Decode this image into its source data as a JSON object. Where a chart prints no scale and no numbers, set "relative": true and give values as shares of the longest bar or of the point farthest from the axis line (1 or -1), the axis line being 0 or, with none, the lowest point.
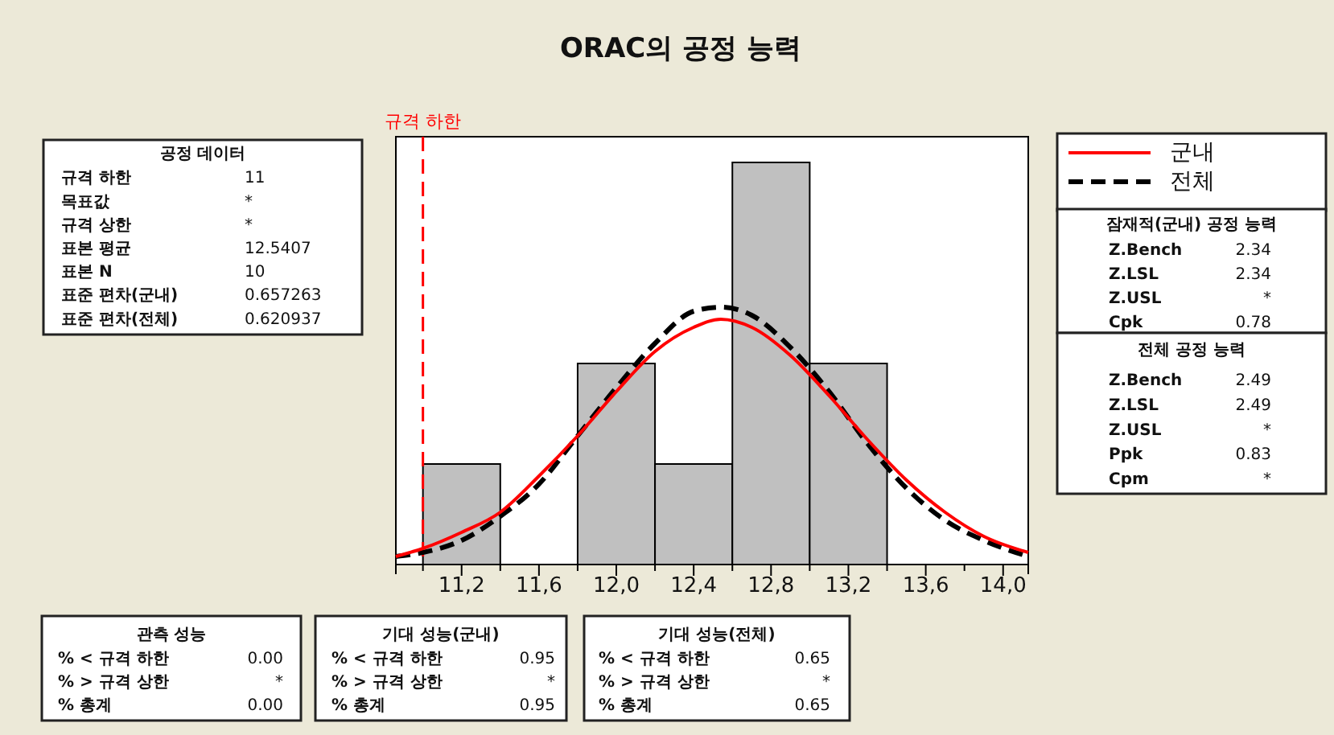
{
  "chart_data": [
    {
      "type": "histogram",
      "title": "ORAC의 공정 능력",
      "relative": true,
      "bins": [
        11.0,
        11.4,
        11.8,
        12.2,
        12.6,
        13.0,
        13.4
      ],
      "values": [
        0.25,
        0,
        0.5,
        0.25,
        1,
        0.5
      ],
      "color": "#c0c0c0",
      "xlim": [
        10.86,
        14.13
      ],
      "xticks": [
        {
          "value": 11.0,
          "label": null
        },
        {
          "value": 11.2,
          "label": "11,2"
        },
        {
          "value": 11.4,
          "label": null
        },
        {
          "value": 11.6,
          "label": "11,6"
        },
        {
          "value": 11.8,
          "label": null
        },
        {
          "value": 12,
          "label": "12,0"
        },
        {
          "value": 12.2,
          "label": null
        },
        {
          "value": 12.4,
          "label": "12,4"
        },
        {
          "value": 12.6,
          "label": null
        },
        {
          "value": 12.8,
          "label": "12,8"
        },
        {
          "value": 13.0,
          "label": null
        },
        {
          "value": 13.2,
          "label": "13,2"
        },
        {
          "value": 13.4,
          "label": null
        },
        {
          "value": 13.6,
          "label": "13,6"
        },
        {
          "value": 13.8,
          "label": null
        },
        {
          "value": 14,
          "label": "14,0"
        }
      ],
      "series": [
        {
          "name": "군내",
          "type": "line",
          "color": "#ff0000",
          "line_style": "solid",
          "x": [
            10.86,
            11.0,
            11.2,
            11.4,
            11.6,
            11.8,
            12.0,
            12.2,
            12.4,
            12.54,
            12.7,
            12.9,
            13.1,
            13.3,
            13.5,
            13.7,
            13.9,
            14.13
          ],
          "values": [
            0.02,
            0.04,
            0.08,
            0.13,
            0.22,
            0.32,
            0.43,
            0.53,
            0.59,
            0.61,
            0.59,
            0.52,
            0.42,
            0.31,
            0.21,
            0.13,
            0.07,
            0.03
          ]
        },
        {
          "name": "전체",
          "type": "line",
          "color": "#000000",
          "line_style": "dashed",
          "x": [
            10.86,
            11.0,
            11.2,
            11.4,
            11.6,
            11.8,
            12.0,
            12.2,
            12.4,
            12.54,
            12.7,
            12.9,
            13.1,
            13.3,
            13.5,
            13.7,
            13.9,
            14.13
          ],
          "values": [
            0.02,
            0.03,
            0.06,
            0.12,
            0.2,
            0.32,
            0.44,
            0.55,
            0.63,
            0.64,
            0.62,
            0.54,
            0.43,
            0.3,
            0.19,
            0.11,
            0.06,
            0.02
          ]
        }
      ],
      "ref_lines": [
        {
          "axis": "x",
          "value": 11,
          "label": "규격 하한",
          "color": "#ff0000",
          "line_style": "dashed"
        }
      ],
      "legend": "top right"
    },
    {
      "type": "other",
      "title": "공정 데이터",
      "annotations": [
        "규격 하한",
        "11",
        "목표값",
        "*",
        "규격 상한",
        "*",
        "표본 평균",
        "12.5407",
        "표본 N",
        "10",
        "표준 편차(군내)",
        "0.657263",
        "표준 편차(전체)",
        "0.620937"
      ]
    },
    {
      "type": "other",
      "title": "잠재적(군내) 공정 능력",
      "annotations": [
        "Z.Bench",
        "2.34",
        "Z.LSL",
        "2.34",
        "Z.USL",
        "*",
        "Cpk",
        "0.78"
      ]
    },
    {
      "type": "other",
      "title": "전체 공정 능력",
      "annotations": [
        "Z.Bench",
        "2.49",
        "Z.LSL",
        "2.49",
        "Z.USL",
        "*",
        "Ppk",
        "0.83",
        "Cpm",
        "*"
      ]
    },
    {
      "type": "other",
      "title": "관측 성능",
      "annotations": [
        "% < 규격 하한",
        "0.00",
        "% > 규격 상한",
        "*",
        "% 총계",
        "0.00"
      ]
    },
    {
      "type": "other",
      "title": "기대 성능(군내)",
      "annotations": [
        "% < 규격 하한",
        "0.95",
        "% > 규격 상한",
        "*",
        "% 총계",
        "0.95"
      ]
    },
    {
      "type": "other",
      "title": "기대 성능(전체)",
      "annotations": [
        "% < 규격 하한",
        "0.65",
        "% > 규격 상한",
        "*",
        "% 총계",
        "0.65"
      ]
    }
  ]
}
